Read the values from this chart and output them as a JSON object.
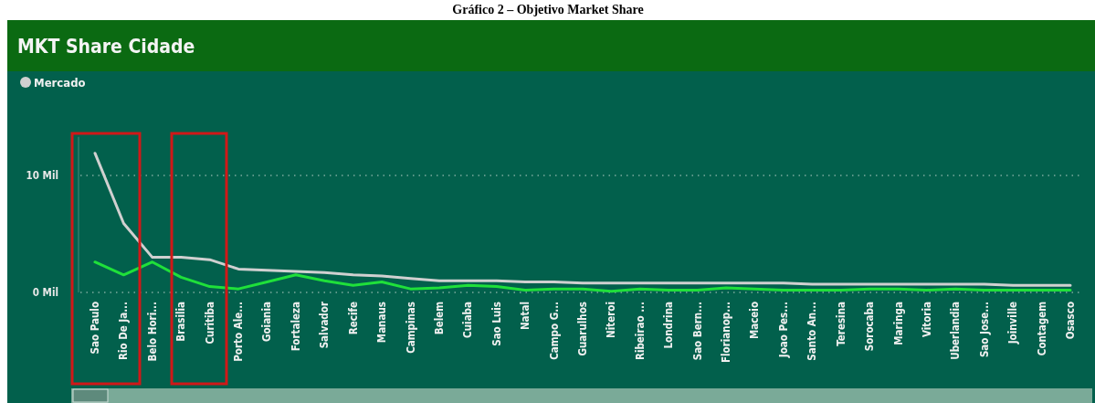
{
  "chart_data": {
    "type": "line",
    "title": "MKT Share Cidade",
    "annotations": [
      "Gráfico 2 – Objetivo Market Share"
    ],
    "categories": [
      "Sao Paulo",
      "Rio De Ja...",
      "Belo Hori...",
      "Brasilia",
      "Curitiba",
      "Porto Ale...",
      "Goiania",
      "Fortaleza",
      "Salvador",
      "Recife",
      "Manaus",
      "Campinas",
      "Belem",
      "Cuiaba",
      "Sao Luis",
      "Natal",
      "Campo G...",
      "Guarulhos",
      "Niteroi",
      "Ribeirao ...",
      "Londrina",
      "Sao Bern...",
      "Florianop...",
      "Maceio",
      "Joao Pes...",
      "Santo An...",
      "Teresina",
      "Sorocaba",
      "Maringa",
      "Vitoria",
      "Uberlandia",
      "Sao Jose...",
      "Joinville",
      "Contagem",
      "Osasco"
    ],
    "series": [
      {
        "name": "Mercado",
        "color": "#d0d0d0",
        "values": [
          11.9,
          5.9,
          3.0,
          3.0,
          2.8,
          2.0,
          1.9,
          1.8,
          1.7,
          1.5,
          1.4,
          1.2,
          1.0,
          1.0,
          1.0,
          0.9,
          0.9,
          0.8,
          0.8,
          0.8,
          0.8,
          0.8,
          0.8,
          0.8,
          0.8,
          0.7,
          0.7,
          0.7,
          0.7,
          0.7,
          0.7,
          0.7,
          0.6,
          0.6,
          0.6
        ]
      },
      {
        "color": "#1fe03a",
        "values": [
          2.6,
          1.5,
          2.6,
          1.3,
          0.5,
          0.3,
          0.9,
          1.5,
          1.0,
          0.6,
          0.9,
          0.3,
          0.4,
          0.6,
          0.5,
          0.2,
          0.3,
          0.3,
          0.1,
          0.3,
          0.2,
          0.2,
          0.4,
          0.3,
          0.2,
          0.2,
          0.2,
          0.3,
          0.3,
          0.2,
          0.3,
          0.2,
          0.2,
          0.2,
          0.2
        ]
      }
    ],
    "ylim": [
      0,
      13.3
    ],
    "yticks": [
      {
        "value": 0,
        "label": "0 Mil"
      },
      {
        "value": 10,
        "label": "10 Mil"
      }
    ],
    "grid": "y",
    "legend": "top left",
    "marker": "none",
    "line_style": "solid"
  }
}
